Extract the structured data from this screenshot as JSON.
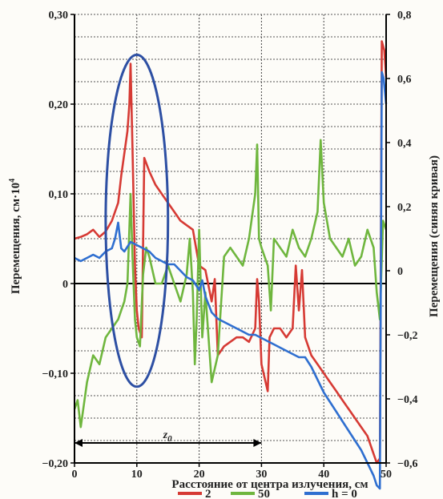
{
  "chart_data": {
    "type": "line",
    "title": "",
    "xlabel": "Расстояние от центра излучения, см",
    "ylabel_left": "Перемещения, см·10",
    "ylabel_left_superscript": "4",
    "ylabel_right": "Перемещения (синяя кривая)",
    "x_ticks": [
      "0",
      "10",
      "20",
      "30",
      "40",
      "50"
    ],
    "y_left_ticks": [
      "0,30",
      "0,20",
      "0,10",
      "0",
      "−0,10",
      "−0,20"
    ],
    "y_right_ticks": [
      "0,8",
      "0,6",
      "0,4",
      "0,2",
      "0",
      "−0,2",
      "−0,4",
      "−0,6"
    ],
    "xlim": [
      0,
      50
    ],
    "ylim_left": [
      -0.2,
      0.3
    ],
    "ylim_right": [
      -0.6,
      0.8
    ],
    "grid": true,
    "annotation": {
      "label": "z",
      "subscript": "0",
      "from_x": 0,
      "to_x": 30
    },
    "highlight_ellipse": {
      "center_x": 10,
      "center_y_left": 0.07,
      "radius_x": 10,
      "radius_y_left": 0.185,
      "color": "#2d4fa3"
    },
    "legend_labels": [
      "2",
      "50",
      "h = 0"
    ],
    "series": [
      {
        "name": "2",
        "color": "#d63a34",
        "axis": "left",
        "x": [
          0,
          1,
          2,
          3,
          4,
          5,
          6,
          7,
          7.5,
          8,
          8.5,
          8.8,
          9,
          9.3,
          9.7,
          10,
          10.3,
          10.8,
          11.2,
          12,
          13,
          14,
          15,
          16,
          17,
          18,
          19,
          20,
          21,
          22,
          22.5,
          23,
          24,
          25,
          26,
          27,
          28,
          29,
          29.3,
          29.6,
          30,
          31,
          31.3,
          32,
          33,
          34,
          35,
          35.5,
          36,
          36.5,
          37,
          38,
          39,
          40,
          41,
          42,
          43,
          44,
          45,
          46,
          47,
          48,
          48.5,
          49,
          49.3,
          49.7,
          50
        ],
        "y": [
          0.05,
          0.052,
          0.055,
          0.06,
          0.052,
          0.058,
          0.07,
          0.09,
          0.12,
          0.145,
          0.17,
          0.2,
          0.245,
          0.15,
          0.02,
          -0.03,
          -0.05,
          -0.06,
          0.14,
          0.125,
          0.11,
          0.1,
          0.09,
          0.08,
          0.07,
          0.065,
          0.06,
          0.02,
          0.015,
          -0.02,
          0.005,
          -0.08,
          -0.07,
          -0.065,
          -0.06,
          -0.06,
          -0.065,
          -0.05,
          0.005,
          -0.02,
          -0.09,
          -0.12,
          -0.06,
          -0.05,
          -0.05,
          -0.06,
          -0.05,
          0.02,
          -0.03,
          0.015,
          -0.06,
          -0.08,
          -0.09,
          -0.1,
          -0.11,
          -0.12,
          -0.13,
          -0.14,
          -0.15,
          -0.16,
          -0.17,
          -0.19,
          -0.2,
          -0.195,
          0.27,
          0.26,
          0.23
        ]
      },
      {
        "name": "50",
        "color": "#6fb63e",
        "axis": "left",
        "x": [
          0,
          0.5,
          1,
          2,
          3,
          4,
          5,
          6,
          7,
          7.5,
          8,
          8.5,
          9,
          9.3,
          9.7,
          10,
          10.5,
          11,
          11.5,
          12,
          13,
          14,
          15,
          16,
          17,
          18,
          18.5,
          19,
          19.3,
          19.6,
          20,
          20.5,
          21,
          22,
          23,
          24,
          25,
          26,
          27,
          28,
          29,
          29.3,
          29.6,
          30,
          31,
          31.5,
          32,
          33,
          34,
          35,
          36,
          37,
          38,
          39,
          39.5,
          40,
          41,
          42,
          43,
          44,
          45,
          46,
          47,
          48,
          48.5,
          49,
          49.5,
          50
        ],
        "y": [
          -0.14,
          -0.13,
          -0.16,
          -0.11,
          -0.08,
          -0.09,
          -0.06,
          -0.05,
          -0.04,
          -0.03,
          -0.02,
          0.0,
          0.1,
          0.03,
          -0.04,
          -0.06,
          -0.07,
          0.01,
          0.04,
          0.03,
          0.0,
          0.0,
          0.02,
          0.0,
          -0.02,
          0.01,
          0.05,
          -0.01,
          -0.09,
          -0.04,
          0.06,
          -0.06,
          -0.01,
          -0.11,
          -0.08,
          0.03,
          0.04,
          0.03,
          0.02,
          0.05,
          0.1,
          0.155,
          0.05,
          0.04,
          0.02,
          -0.03,
          0.05,
          0.04,
          0.03,
          0.06,
          0.04,
          0.03,
          0.05,
          0.08,
          0.16,
          0.09,
          0.05,
          0.04,
          0.03,
          0.05,
          0.02,
          0.03,
          0.06,
          0.04,
          -0.01,
          -0.04,
          0.07,
          0.06
        ]
      },
      {
        "name": "h = 0",
        "color": "#2f6fd0",
        "axis": "right",
        "x": [
          0,
          1,
          2,
          3,
          4,
          5,
          6,
          6.5,
          7,
          7.5,
          8,
          9,
          10,
          11,
          12,
          13,
          14,
          15,
          16,
          17,
          18,
          19,
          20,
          20.5,
          21,
          22,
          23,
          24,
          25,
          26,
          27,
          28,
          29,
          30,
          31,
          32,
          33,
          34,
          35,
          36,
          37,
          38,
          39,
          40,
          41,
          42,
          43,
          44,
          45,
          46,
          47,
          48,
          48.5,
          49,
          49.3,
          49.6,
          50
        ],
        "y": [
          0.04,
          0.03,
          0.04,
          0.05,
          0.04,
          0.06,
          0.07,
          0.1,
          0.15,
          0.07,
          0.06,
          0.09,
          0.08,
          0.07,
          0.06,
          0.04,
          0.03,
          0.02,
          0.02,
          0.0,
          -0.02,
          -0.03,
          -0.06,
          -0.03,
          -0.08,
          -0.13,
          -0.15,
          -0.16,
          -0.17,
          -0.18,
          -0.19,
          -0.2,
          -0.2,
          -0.21,
          -0.22,
          -0.23,
          -0.24,
          -0.25,
          -0.26,
          -0.27,
          -0.27,
          -0.3,
          -0.34,
          -0.38,
          -0.41,
          -0.44,
          -0.47,
          -0.5,
          -0.53,
          -0.56,
          -0.6,
          -0.64,
          -0.67,
          -0.68,
          0.62,
          0.6,
          0.52
        ]
      }
    ]
  }
}
